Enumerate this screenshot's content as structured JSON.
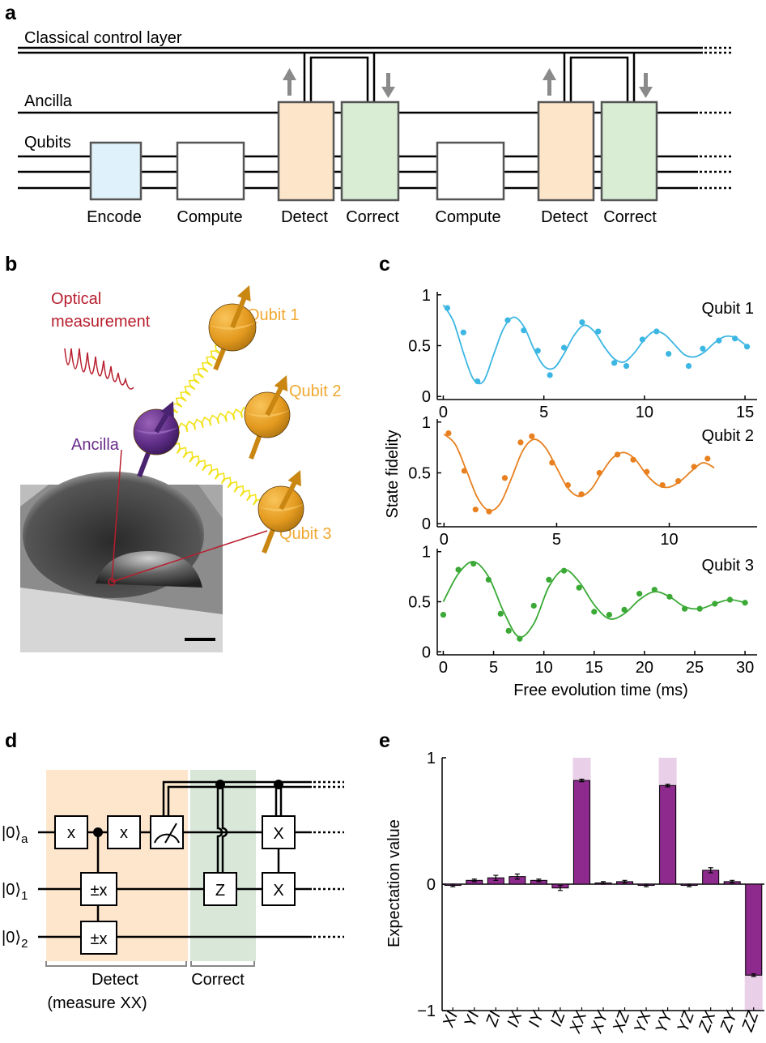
{
  "panel_labels": [
    "a",
    "b",
    "c",
    "d",
    "e"
  ],
  "circuit_a": {
    "lines": [
      "Classical control layer",
      "Ancilla",
      "Qubits"
    ],
    "boxes": [
      "Encode",
      "Compute",
      "Detect",
      "Correct",
      "Compute",
      "Detect",
      "Correct"
    ]
  },
  "illustration_b": {
    "optical": [
      "Optical",
      "measurement"
    ],
    "ancilla": "Ancilla",
    "qubits": [
      "Qubit 1",
      "Qubit 2",
      "Qubit 3"
    ]
  },
  "circuit_d": {
    "kets": [
      {
        "ket": "|0⟩",
        "sub": "a"
      },
      {
        "ket": "|0⟩",
        "sub": "1"
      },
      {
        "ket": "|0⟩",
        "sub": "2"
      }
    ],
    "gates": [
      "x",
      "x",
      "±x",
      "±x",
      "Z",
      "X",
      "X"
    ],
    "detect": "Detect",
    "detect_note": "(measure XX)",
    "correct": "Correct"
  },
  "chart_data": [
    {
      "type": "line",
      "annotation": "Qubit 1",
      "color": "#3cb6e3",
      "xlim": [
        -0.3,
        15.6
      ],
      "ylim": [
        -0.03,
        1.03
      ],
      "xticks": [
        0,
        5,
        10,
        15
      ],
      "yticks": [
        0,
        0.5,
        1
      ],
      "points": {
        "x": [
          0.2,
          1.0,
          1.7,
          3.2,
          4.0,
          4.7,
          5.3,
          6.0,
          6.9,
          7.7,
          8.5,
          9.1,
          9.9,
          10.6,
          11.2,
          12.2,
          12.9,
          13.7,
          14.5,
          15.1
        ],
        "values": [
          0.87,
          0.63,
          0.15,
          0.75,
          0.65,
          0.45,
          0.21,
          0.48,
          0.73,
          0.64,
          0.33,
          0.3,
          0.56,
          0.64,
          0.42,
          0.3,
          0.47,
          0.55,
          0.57,
          0.49
        ]
      },
      "fit": {
        "x": [
          0,
          0.5,
          1,
          1.5,
          2,
          2.5,
          3,
          3.5,
          4,
          4.5,
          5,
          5.5,
          6,
          6.5,
          7,
          7.5,
          8,
          8.5,
          9,
          9.5,
          10,
          10.5,
          11,
          11.5,
          12,
          12.5,
          13,
          13.5,
          14,
          14.5,
          15
        ],
        "values": [
          0.9,
          0.74,
          0.43,
          0.17,
          0.15,
          0.41,
          0.67,
          0.78,
          0.69,
          0.47,
          0.3,
          0.28,
          0.42,
          0.6,
          0.7,
          0.64,
          0.49,
          0.37,
          0.34,
          0.43,
          0.56,
          0.64,
          0.61,
          0.51,
          0.41,
          0.39,
          0.44,
          0.53,
          0.59,
          0.58,
          0.51
        ]
      }
    },
    {
      "type": "line",
      "annotation": "Qubit 2",
      "color": "#e8801f",
      "ylabel": "State fidelity",
      "xlim": [
        -0.3,
        13.9
      ],
      "ylim": [
        -0.03,
        1.03
      ],
      "xticks": [
        0,
        5,
        10
      ],
      "yticks": [
        0,
        0.5,
        1
      ],
      "points": {
        "x": [
          0.2,
          0.9,
          1.4,
          2.0,
          2.7,
          3.4,
          3.9,
          4.8,
          5.5,
          6.1,
          6.9,
          7.7,
          8.4,
          9.0,
          9.7,
          10.4,
          11.1,
          11.7
        ],
        "values": [
          0.89,
          0.52,
          0.14,
          0.12,
          0.45,
          0.8,
          0.86,
          0.6,
          0.38,
          0.29,
          0.5,
          0.68,
          0.63,
          0.51,
          0.38,
          0.42,
          0.56,
          0.64
        ]
      },
      "fit": {
        "x": [
          0,
          0.5,
          1,
          1.5,
          2,
          2.5,
          3,
          3.5,
          4,
          4.5,
          5,
          5.5,
          6,
          6.5,
          7,
          7.5,
          8,
          8.5,
          9,
          9.5,
          10,
          10.5,
          11,
          11.5,
          12
        ],
        "values": [
          0.88,
          0.78,
          0.52,
          0.25,
          0.13,
          0.2,
          0.45,
          0.72,
          0.83,
          0.75,
          0.55,
          0.35,
          0.27,
          0.33,
          0.5,
          0.65,
          0.7,
          0.63,
          0.48,
          0.38,
          0.36,
          0.42,
          0.52,
          0.6,
          0.55
        ]
      }
    },
    {
      "type": "line",
      "annotation": "Qubit 3",
      "color": "#3aa935",
      "xlabel": "Free evolution time (ms)",
      "xlim": [
        -0.6,
        31.2
      ],
      "ylim": [
        -0.03,
        1.03
      ],
      "xticks": [
        0,
        5,
        10,
        15,
        20,
        25,
        30
      ],
      "yticks": [
        0,
        0.5,
        1
      ],
      "points": {
        "x": [
          0,
          1.5,
          3,
          4.5,
          5.7,
          6.5,
          7.6,
          9,
          10.5,
          12,
          13.5,
          15,
          16.5,
          18,
          19.5,
          21,
          22.5,
          24,
          25.5,
          27,
          28.5,
          30
        ],
        "values": [
          0.37,
          0.82,
          0.88,
          0.72,
          0.38,
          0.21,
          0.13,
          0.46,
          0.72,
          0.81,
          0.64,
          0.4,
          0.37,
          0.42,
          0.58,
          0.62,
          0.55,
          0.43,
          0.43,
          0.48,
          0.52,
          0.49
        ]
      },
      "fit": {
        "x": [
          0,
          1.5,
          3,
          4.5,
          6,
          7.5,
          9,
          10.5,
          12,
          13.5,
          15,
          16.5,
          18,
          19.5,
          21,
          22.5,
          24,
          25.5,
          27,
          28.5,
          30
        ],
        "values": [
          0.5,
          0.78,
          0.9,
          0.75,
          0.4,
          0.15,
          0.28,
          0.65,
          0.82,
          0.7,
          0.47,
          0.33,
          0.38,
          0.52,
          0.6,
          0.55,
          0.45,
          0.43,
          0.48,
          0.52,
          0.49
        ]
      }
    },
    {
      "type": "bar",
      "ylabel": "Expectation value",
      "color": "#8e2a8e",
      "ideal_color": "#e9cfe7",
      "categories": [
        "XI",
        "YI",
        "ZI",
        "IX",
        "IY",
        "IZ",
        "XX",
        "XY",
        "XZ",
        "YX",
        "YY",
        "YZ",
        "ZX",
        "ZY",
        "ZZ"
      ],
      "values": [
        -0.01,
        0.03,
        0.05,
        0.06,
        0.03,
        -0.03,
        0.82,
        0.01,
        0.02,
        -0.01,
        0.78,
        -0.01,
        0.11,
        0.02,
        -0.72
      ],
      "errors": [
        0.01,
        0.01,
        0.02,
        0.02,
        0.01,
        0.02,
        0.01,
        0.01,
        0.01,
        0.01,
        0.01,
        0.01,
        0.02,
        0.01,
        0.01
      ],
      "ideal_values": [
        0,
        0,
        0,
        0,
        0,
        0,
        1,
        0,
        0,
        0,
        1,
        0,
        0,
        0,
        -1
      ],
      "ylim": [
        -1,
        1
      ],
      "yticks": [
        {
          "value": -1,
          "label": "−1"
        },
        0,
        1
      ]
    }
  ]
}
